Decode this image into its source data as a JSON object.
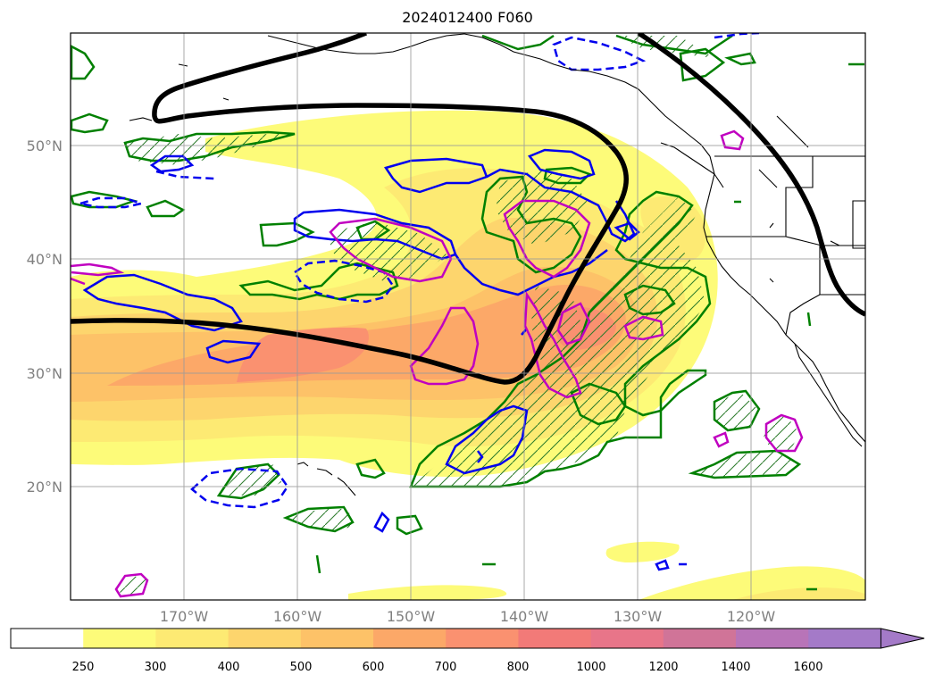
{
  "title": "2024012400 F060",
  "lat_labels": [
    "50°N",
    "40°N",
    "30°N",
    "20°N"
  ],
  "lon_labels": [
    "170°W",
    "160°W",
    "150°W",
    "140°W",
    "130°W",
    "120°W"
  ],
  "colorbar": {
    "ticks": [
      "250",
      "300",
      "400",
      "500",
      "600",
      "700",
      "800",
      "1000",
      "1200",
      "1400",
      "1600"
    ],
    "colors": [
      "#ffffff",
      "#fdfb79",
      "#fdea73",
      "#fdd56d",
      "#fdc268",
      "#fca868",
      "#fa9170",
      "#f27a78",
      "#e87589",
      "#d07498",
      "#b874b8",
      "#a47ac8"
    ],
    "extend": "max"
  },
  "legend_colors": {
    "black_contour": "#000000",
    "green_contour": "#008000",
    "blue_contour": "#0000ff",
    "magenta_contour": "#c000c0"
  }
}
